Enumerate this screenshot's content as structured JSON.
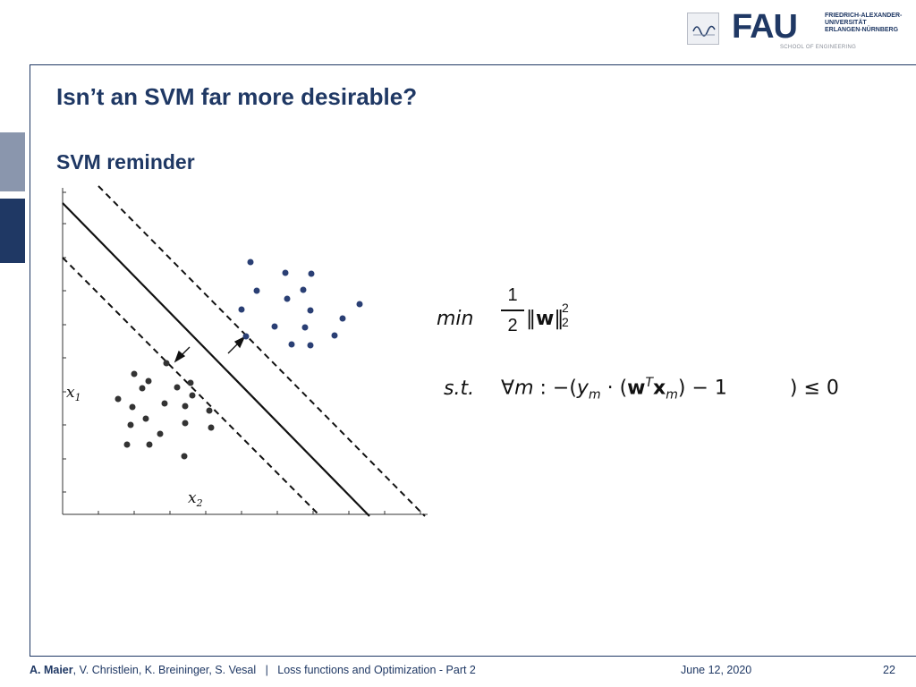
{
  "header": {
    "logo_text": "FAU",
    "university_lines": [
      "FRIEDRICH-ALEXANDER-",
      "UNIVERSITÄT",
      "ERLANGEN-NÜRNBERG"
    ],
    "school": "SCHOOL OF ENGINEERING"
  },
  "slide": {
    "title": "Isn’t an SVM far more desirable?",
    "subtitle": "SVM reminder"
  },
  "figure": {
    "x1_label": "x",
    "x1_sub": "1",
    "x2_label": "x",
    "x2_sub": "2"
  },
  "math": {
    "min": "min",
    "frac_num": "1",
    "frac_den": "2",
    "norm_var": "w",
    "norm_sup": "2",
    "norm_sub": "2",
    "st": "s.t.",
    "forall": "∀",
    "m_var": "m",
    "colon": " : −(",
    "y": "y",
    "y_sub": "m",
    "dot": " · (",
    "w": "w",
    "w_sup": "T",
    "x": "x",
    "x_sub": "m",
    "minus_one": ") − 1",
    "close": ") ≤ 0"
  },
  "footer": {
    "lead_author": "A. Maier",
    "coauthors": ", V. Christlein, K. Breininger, S. Vesal",
    "separator": "|",
    "lecture": "Loss functions and Optimization - Part 2",
    "date": "June 12, 2020",
    "page": "22"
  },
  "colors": {
    "brand": "#1f3864",
    "side_tab_light": "#8a96ad",
    "points_class_a": "#2a3f74",
    "points_class_b": "#333333"
  }
}
